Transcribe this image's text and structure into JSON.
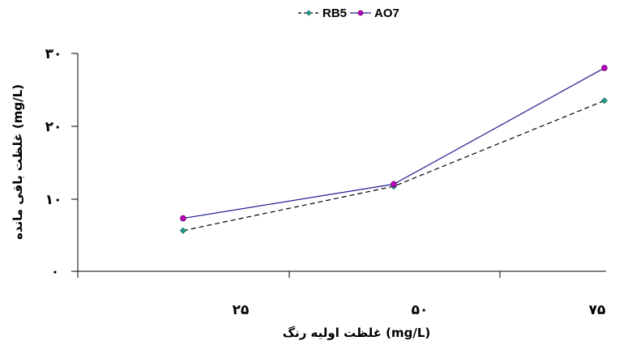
{
  "chart_data": {
    "type": "line",
    "categories": [
      "۲۵",
      "۵۰",
      "۷۵"
    ],
    "y_ticks": [
      "۰",
      "۱۰",
      "۲۰",
      "۳۰"
    ],
    "ylim": [
      0,
      30
    ],
    "xlabel": "غلظت اولیه رنگ (mg/L)",
    "ylabel": "غلظت باقی مانده (mg/L)",
    "legend_position": "top-center",
    "grid": false,
    "series": [
      {
        "name": "RB5",
        "values": [
          5.6,
          11.7,
          23.5
        ],
        "color": "#2a9d8f",
        "line_color": "#000000",
        "line_style": "dashed",
        "marker": "diamond"
      },
      {
        "name": "AO7",
        "values": [
          7.3,
          12.0,
          28.0
        ],
        "color": "#c000c0",
        "line_color": "#1f1f8f",
        "line_style": "solid",
        "marker": "circle"
      }
    ]
  }
}
